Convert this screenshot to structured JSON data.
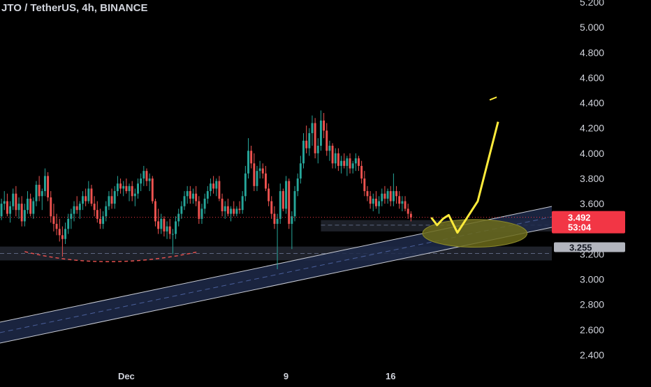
{
  "chart_title": "JTO / TetherUS, 4h, BINANCE",
  "colors": {
    "background": "#000000",
    "up": "#26a69a",
    "down": "#ef5350",
    "projection": "#ffeb3b",
    "price_tag": "#f23645",
    "channel_fill": "#1e2a4a",
    "zone_fill": "#2a2e39",
    "target_ellipse": "#6b6a1a"
  },
  "chart_data": {
    "type": "candlestick",
    "title": "JTO / TetherUS, 4h, BINANCE",
    "ylim": [
      2.35,
      5.22
    ],
    "y_ticks": [
      "5.200",
      "5.000",
      "4.800",
      "4.600",
      "4.400",
      "4.200",
      "4.000",
      "3.800",
      "3.600",
      "3.400",
      "3.200",
      "3.000",
      "2.800",
      "2.600",
      "2.400"
    ],
    "x_ticks": [
      "Dec",
      "9",
      "16"
    ],
    "x_tick_index": [
      43,
      98,
      134
    ],
    "n_slots": 190,
    "last_price": "3.492",
    "countdown": "53:04",
    "support_label": "3.255",
    "support_level": 3.255,
    "support_zone": [
      3.15,
      3.26
    ],
    "mid_zone": [
      3.38,
      3.47
    ],
    "candles": [
      [
        3.5,
        3.64,
        3.47,
        3.6
      ],
      [
        3.6,
        3.7,
        3.55,
        3.62
      ],
      [
        3.62,
        3.68,
        3.5,
        3.52
      ],
      [
        3.52,
        3.62,
        3.45,
        3.58
      ],
      [
        3.58,
        3.72,
        3.55,
        3.68
      ],
      [
        3.68,
        3.74,
        3.5,
        3.55
      ],
      [
        3.55,
        3.65,
        3.48,
        3.6
      ],
      [
        3.6,
        3.66,
        3.42,
        3.46
      ],
      [
        3.46,
        3.6,
        3.42,
        3.55
      ],
      [
        3.55,
        3.7,
        3.52,
        3.64
      ],
      [
        3.64,
        3.68,
        3.5,
        3.52
      ],
      [
        3.52,
        3.65,
        3.48,
        3.62
      ],
      [
        3.62,
        3.78,
        3.58,
        3.75
      ],
      [
        3.75,
        3.82,
        3.62,
        3.66
      ],
      [
        3.66,
        3.72,
        3.55,
        3.7
      ],
      [
        3.7,
        3.88,
        3.66,
        3.82
      ],
      [
        3.82,
        3.85,
        3.62,
        3.65
      ],
      [
        3.65,
        3.7,
        3.45,
        3.5
      ],
      [
        3.5,
        3.6,
        3.38,
        3.44
      ],
      [
        3.44,
        3.52,
        3.35,
        3.4
      ],
      [
        3.4,
        3.48,
        3.3,
        3.35
      ],
      [
        3.35,
        3.42,
        3.18,
        3.32
      ],
      [
        3.32,
        3.45,
        3.28,
        3.4
      ],
      [
        3.4,
        3.52,
        3.36,
        3.48
      ],
      [
        3.48,
        3.56,
        3.4,
        3.52
      ],
      [
        3.52,
        3.62,
        3.46,
        3.58
      ],
      [
        3.58,
        3.66,
        3.52,
        3.55
      ],
      [
        3.55,
        3.62,
        3.48,
        3.6
      ],
      [
        3.6,
        3.7,
        3.55,
        3.66
      ],
      [
        3.66,
        3.72,
        3.58,
        3.62
      ],
      [
        3.62,
        3.78,
        3.6,
        3.72
      ],
      [
        3.72,
        3.75,
        3.58,
        3.6
      ],
      [
        3.6,
        3.66,
        3.5,
        3.55
      ],
      [
        3.55,
        3.62,
        3.45,
        3.48
      ],
      [
        3.48,
        3.56,
        3.4,
        3.44
      ],
      [
        3.44,
        3.54,
        3.4,
        3.5
      ],
      [
        3.5,
        3.62,
        3.46,
        3.58
      ],
      [
        3.58,
        3.7,
        3.55,
        3.66
      ],
      [
        3.66,
        3.72,
        3.56,
        3.6
      ],
      [
        3.6,
        3.74,
        3.56,
        3.7
      ],
      [
        3.7,
        3.82,
        3.66,
        3.76
      ],
      [
        3.76,
        3.8,
        3.68,
        3.72
      ],
      [
        3.72,
        3.78,
        3.66,
        3.74
      ],
      [
        3.74,
        3.8,
        3.68,
        3.7
      ],
      [
        3.7,
        3.76,
        3.62,
        3.74
      ],
      [
        3.74,
        3.78,
        3.62,
        3.66
      ],
      [
        3.66,
        3.72,
        3.58,
        3.68
      ],
      [
        3.68,
        3.8,
        3.64,
        3.76
      ],
      [
        3.76,
        3.84,
        3.7,
        3.8
      ],
      [
        3.8,
        3.9,
        3.74,
        3.86
      ],
      [
        3.86,
        3.88,
        3.74,
        3.78
      ],
      [
        3.78,
        3.84,
        3.7,
        3.8
      ],
      [
        3.8,
        3.82,
        3.6,
        3.62
      ],
      [
        3.62,
        3.64,
        3.42,
        3.46
      ],
      [
        3.46,
        3.56,
        3.36,
        3.4
      ],
      [
        3.4,
        3.52,
        3.36,
        3.48
      ],
      [
        3.48,
        3.5,
        3.34,
        3.38
      ],
      [
        3.38,
        3.46,
        3.32,
        3.42
      ],
      [
        3.42,
        3.48,
        3.32,
        3.36
      ],
      [
        3.36,
        3.4,
        3.2,
        3.36
      ],
      [
        3.36,
        3.5,
        3.32,
        3.46
      ],
      [
        3.46,
        3.56,
        3.42,
        3.52
      ],
      [
        3.52,
        3.62,
        3.48,
        3.58
      ],
      [
        3.58,
        3.7,
        3.55,
        3.66
      ],
      [
        3.66,
        3.74,
        3.6,
        3.7
      ],
      [
        3.7,
        3.74,
        3.6,
        3.64
      ],
      [
        3.64,
        3.72,
        3.6,
        3.68
      ],
      [
        3.68,
        3.74,
        3.58,
        3.62
      ],
      [
        3.62,
        3.66,
        3.44,
        3.48
      ],
      [
        3.48,
        3.6,
        3.44,
        3.56
      ],
      [
        3.56,
        3.68,
        3.52,
        3.64
      ],
      [
        3.64,
        3.74,
        3.6,
        3.7
      ],
      [
        3.7,
        3.8,
        3.66,
        3.76
      ],
      [
        3.76,
        3.82,
        3.68,
        3.72
      ],
      [
        3.72,
        3.8,
        3.66,
        3.78
      ],
      [
        3.78,
        3.82,
        3.62,
        3.64
      ],
      [
        3.64,
        3.68,
        3.5,
        3.54
      ],
      [
        3.54,
        3.62,
        3.48,
        3.58
      ],
      [
        3.58,
        3.64,
        3.5,
        3.52
      ],
      [
        3.52,
        3.58,
        3.46,
        3.56
      ],
      [
        3.56,
        3.62,
        3.5,
        3.52
      ],
      [
        3.52,
        3.58,
        3.5,
        3.56
      ],
      [
        3.56,
        3.62,
        3.52,
        3.55
      ],
      [
        3.55,
        3.7,
        3.52,
        3.66
      ],
      [
        3.66,
        3.9,
        3.62,
        3.84
      ],
      [
        3.84,
        4.12,
        3.8,
        4.02
      ],
      [
        4.02,
        4.06,
        3.88,
        3.92
      ],
      [
        3.92,
        4.0,
        3.7,
        3.74
      ],
      [
        3.74,
        3.9,
        3.7,
        3.86
      ],
      [
        3.86,
        3.94,
        3.8,
        3.88
      ],
      [
        3.88,
        3.92,
        3.8,
        3.84
      ],
      [
        3.84,
        3.9,
        3.7,
        3.72
      ],
      [
        3.72,
        3.76,
        3.58,
        3.62
      ],
      [
        3.62,
        3.66,
        3.48,
        3.52
      ],
      [
        3.52,
        3.58,
        3.4,
        3.44
      ],
      [
        3.44,
        3.52,
        3.08,
        3.48
      ],
      [
        3.48,
        3.76,
        3.44,
        3.7
      ],
      [
        3.7,
        3.72,
        3.54,
        3.56
      ],
      [
        3.56,
        3.82,
        3.52,
        3.78
      ],
      [
        3.78,
        3.8,
        3.4,
        3.44
      ],
      [
        3.44,
        3.54,
        3.24,
        3.5
      ],
      [
        3.5,
        3.74,
        3.46,
        3.7
      ],
      [
        3.7,
        3.84,
        3.66,
        3.8
      ],
      [
        3.8,
        3.98,
        3.76,
        3.92
      ],
      [
        3.92,
        4.16,
        3.88,
        4.1
      ],
      [
        4.1,
        4.22,
        4.0,
        4.04
      ],
      [
        4.04,
        4.2,
        3.98,
        4.16
      ],
      [
        4.16,
        4.3,
        4.06,
        4.24
      ],
      [
        4.24,
        4.28,
        3.96,
        4.0
      ],
      [
        4.0,
        4.12,
        3.92,
        4.06
      ],
      [
        4.06,
        4.34,
        4.02,
        4.26
      ],
      [
        4.26,
        4.32,
        4.12,
        4.18
      ],
      [
        4.18,
        4.24,
        3.98,
        4.02
      ],
      [
        4.02,
        4.1,
        3.94,
        4.06
      ],
      [
        4.06,
        4.08,
        3.88,
        3.92
      ],
      [
        3.92,
        4.04,
        3.88,
        4.0
      ],
      [
        4.0,
        4.04,
        3.86,
        3.9
      ],
      [
        3.9,
        3.98,
        3.84,
        3.94
      ],
      [
        3.94,
        4.0,
        3.88,
        3.9
      ],
      [
        3.9,
        3.98,
        3.82,
        3.96
      ],
      [
        3.96,
        4.0,
        3.84,
        3.88
      ],
      [
        3.88,
        3.94,
        3.84,
        3.92
      ],
      [
        3.92,
        4.0,
        3.86,
        3.96
      ],
      [
        3.96,
        3.98,
        3.86,
        3.9
      ],
      [
        3.9,
        3.94,
        3.76,
        3.8
      ],
      [
        3.8,
        3.86,
        3.66,
        3.7
      ],
      [
        3.7,
        3.74,
        3.62,
        3.66
      ],
      [
        3.66,
        3.7,
        3.56,
        3.6
      ],
      [
        3.6,
        3.68,
        3.54,
        3.64
      ],
      [
        3.64,
        3.7,
        3.56,
        3.58
      ],
      [
        3.58,
        3.66,
        3.52,
        3.62
      ],
      [
        3.62,
        3.72,
        3.58,
        3.68
      ],
      [
        3.68,
        3.74,
        3.6,
        3.64
      ],
      [
        3.64,
        3.72,
        3.6,
        3.7
      ],
      [
        3.7,
        3.74,
        3.58,
        3.62
      ],
      [
        3.62,
        3.84,
        3.58,
        3.7
      ],
      [
        3.7,
        3.74,
        3.6,
        3.66
      ],
      [
        3.66,
        3.7,
        3.56,
        3.6
      ],
      [
        3.6,
        3.66,
        3.54,
        3.62
      ],
      [
        3.62,
        3.66,
        3.54,
        3.56
      ],
      [
        3.56,
        3.6,
        3.48,
        3.52
      ],
      [
        3.52,
        3.54,
        3.46,
        3.49
      ]
    ],
    "projection_path": [
      [
        148,
        3.49
      ],
      [
        150,
        3.43
      ],
      [
        152,
        3.48
      ],
      [
        154,
        3.51
      ],
      [
        157,
        3.37
      ],
      [
        164,
        3.62
      ],
      [
        171,
        4.25
      ]
    ],
    "projection_target": 4.44
  }
}
